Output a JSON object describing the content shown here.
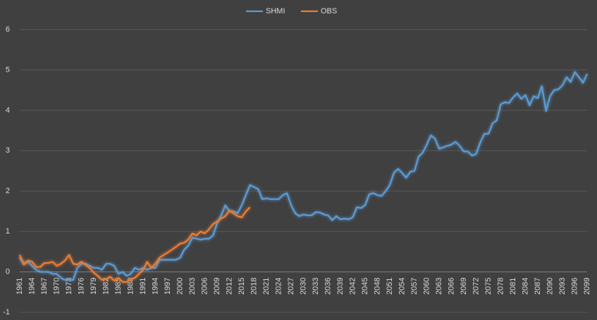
{
  "chart_data": {
    "type": "line",
    "x": [
      1961,
      1962,
      1963,
      1964,
      1965,
      1966,
      1967,
      1968,
      1969,
      1970,
      1971,
      1972,
      1973,
      1974,
      1975,
      1976,
      1977,
      1978,
      1979,
      1980,
      1981,
      1982,
      1983,
      1984,
      1985,
      1986,
      1987,
      1988,
      1989,
      1990,
      1991,
      1992,
      1993,
      1994,
      1995,
      1996,
      1997,
      1998,
      1999,
      2000,
      2001,
      2002,
      2003,
      2004,
      2005,
      2006,
      2007,
      2008,
      2009,
      2010,
      2011,
      2012,
      2013,
      2014,
      2015,
      2016,
      2017,
      2018,
      2019,
      2020,
      2021,
      2022,
      2023,
      2024,
      2025,
      2026,
      2027,
      2028,
      2029,
      2030,
      2031,
      2032,
      2033,
      2034,
      2035,
      2036,
      2037,
      2038,
      2039,
      2040,
      2041,
      2042,
      2043,
      2044,
      2045,
      2046,
      2047,
      2048,
      2049,
      2050,
      2051,
      2052,
      2053,
      2054,
      2055,
      2056,
      2057,
      2058,
      2059,
      2060,
      2061,
      2062,
      2063,
      2064,
      2065,
      2066,
      2067,
      2068,
      2069,
      2070,
      2071,
      2072,
      2073,
      2074,
      2075,
      2076,
      2077,
      2078,
      2079,
      2080,
      2081,
      2082,
      2083,
      2084,
      2085,
      2086,
      2087,
      2088,
      2089,
      2090,
      2091,
      2092,
      2093,
      2094,
      2095,
      2096,
      2097,
      2098,
      2099
    ],
    "series": [
      {
        "name": "SHMI",
        "color": "#5b9bd5",
        "values": [
          0.35,
          0.2,
          0.25,
          0.15,
          0.05,
          0.0,
          0.0,
          0.0,
          -0.05,
          -0.05,
          -0.15,
          -0.2,
          -0.2,
          -0.2,
          0.1,
          0.2,
          0.2,
          0.15,
          0.1,
          0.1,
          0.05,
          0.2,
          0.2,
          0.15,
          -0.05,
          0.0,
          -0.1,
          -0.05,
          0.1,
          0.05,
          0.1,
          0.05,
          0.1,
          0.1,
          0.3,
          0.3,
          0.3,
          0.3,
          0.3,
          0.35,
          0.55,
          0.65,
          0.85,
          0.82,
          0.8,
          0.82,
          0.82,
          0.9,
          1.2,
          1.4,
          1.65,
          1.5,
          1.5,
          1.45,
          1.65,
          1.9,
          2.15,
          2.1,
          2.05,
          1.8,
          1.82,
          1.8,
          1.8,
          1.8,
          1.9,
          1.95,
          1.65,
          1.45,
          1.38,
          1.42,
          1.4,
          1.4,
          1.48,
          1.47,
          1.42,
          1.4,
          1.28,
          1.38,
          1.3,
          1.32,
          1.3,
          1.35,
          1.6,
          1.58,
          1.65,
          1.92,
          1.95,
          1.9,
          1.88,
          2.0,
          2.15,
          2.45,
          2.55,
          2.45,
          2.33,
          2.48,
          2.5,
          2.85,
          2.95,
          3.15,
          3.38,
          3.3,
          3.05,
          3.08,
          3.12,
          3.15,
          3.22,
          3.12,
          2.98,
          2.98,
          2.88,
          2.92,
          3.2,
          3.42,
          3.42,
          3.68,
          3.75,
          4.15,
          4.2,
          4.18,
          4.32,
          4.42,
          4.28,
          4.38,
          4.12,
          4.35,
          4.3,
          4.6,
          3.98,
          4.35,
          4.5,
          4.52,
          4.62,
          4.82,
          4.7,
          4.95,
          4.82,
          4.68,
          4.9
        ]
      },
      {
        "name": "OBS",
        "color": "#ed7d31",
        "values": [
          0.42,
          0.18,
          0.28,
          0.25,
          0.12,
          0.12,
          0.22,
          0.22,
          0.25,
          0.15,
          0.2,
          0.28,
          0.42,
          0.2,
          0.18,
          0.25,
          0.18,
          0.1,
          -0.02,
          -0.1,
          -0.2,
          -0.18,
          -0.12,
          -0.22,
          -0.15,
          -0.25,
          -0.25,
          -0.18,
          -0.15,
          -0.05,
          0.05,
          0.25,
          0.1,
          0.2,
          0.35,
          0.42,
          0.48,
          0.55,
          0.62,
          0.7,
          0.72,
          0.8,
          0.95,
          0.9,
          1.0,
          0.95,
          1.05,
          1.18,
          1.25,
          1.32,
          1.38,
          1.52,
          1.45,
          1.38,
          1.35,
          1.5,
          1.6,
          null,
          null,
          null,
          null,
          null,
          null,
          null,
          null,
          null,
          null,
          null,
          null,
          null,
          null,
          null,
          null,
          null,
          null,
          null,
          null,
          null,
          null,
          null,
          null,
          null,
          null,
          null,
          null,
          null,
          null,
          null,
          null,
          null,
          null,
          null,
          null,
          null,
          null,
          null,
          null,
          null,
          null,
          null,
          null,
          null,
          null,
          null,
          null,
          null,
          null,
          null,
          null,
          null,
          null,
          null,
          null,
          null,
          null,
          null,
          null,
          null,
          null,
          null,
          null,
          null,
          null,
          null,
          null,
          null,
          null,
          null,
          null,
          null,
          null,
          null,
          null,
          null,
          null,
          null,
          null,
          null,
          null
        ]
      }
    ],
    "xlim": [
      1961,
      2099
    ],
    "xticks": [
      1961,
      1964,
      1967,
      1970,
      1973,
      1976,
      1979,
      1982,
      1985,
      1988,
      1991,
      1994,
      1997,
      2000,
      2003,
      2006,
      2009,
      2012,
      2015,
      2018,
      2021,
      2024,
      2027,
      2030,
      2033,
      2036,
      2039,
      2042,
      2045,
      2048,
      2051,
      2054,
      2057,
      2060,
      2063,
      2066,
      2069,
      2072,
      2075,
      2078,
      2081,
      2084,
      2087,
      2090,
      2093,
      2096,
      2099
    ],
    "ylim": [
      -1,
      6
    ],
    "yticks": [
      -1,
      0,
      1,
      2,
      3,
      4,
      5,
      6
    ],
    "grid": true,
    "legend": "top"
  }
}
